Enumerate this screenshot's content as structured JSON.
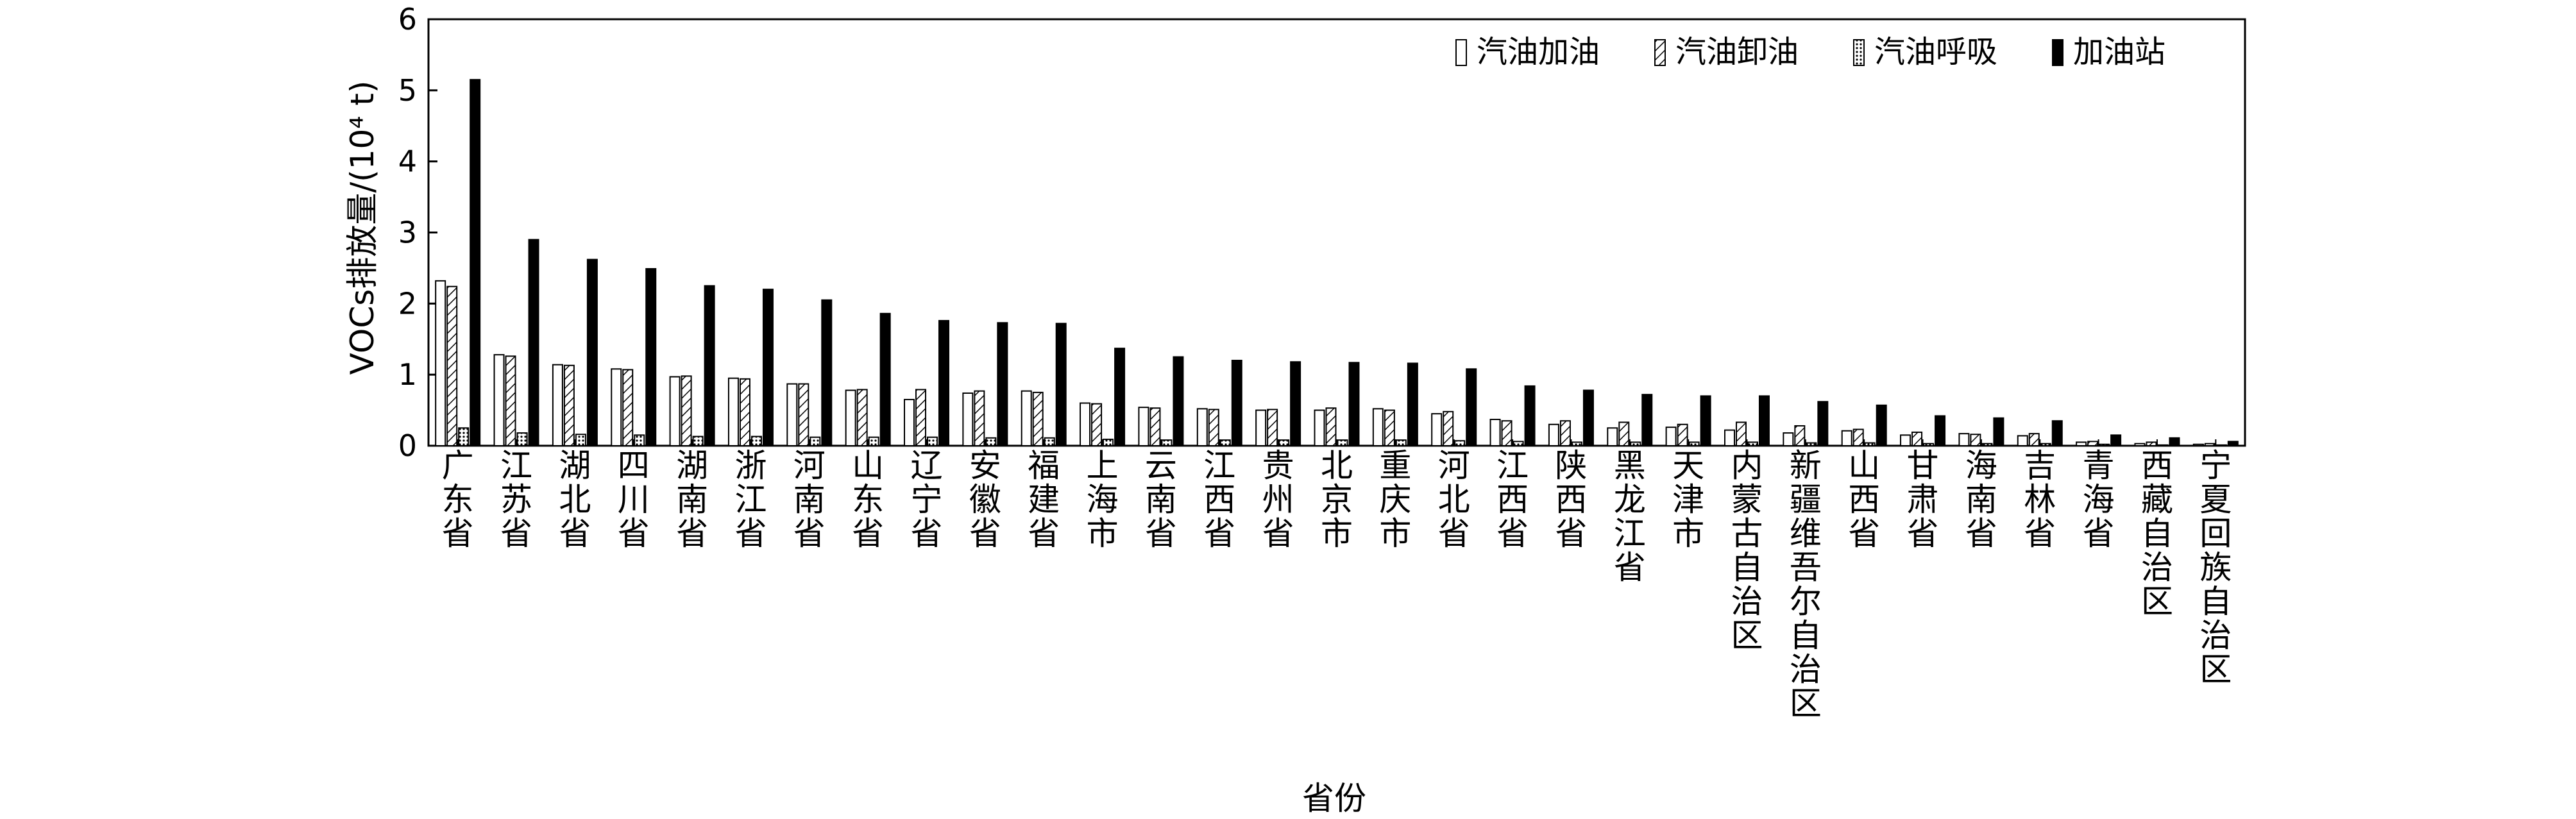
{
  "chart_data": {
    "type": "bar",
    "title": "",
    "xlabel": "省份",
    "ylabel": "VOCs排放量/(10⁴ t)",
    "ylim": [
      0,
      6
    ],
    "yticks": [
      "0",
      "1",
      "2",
      "3",
      "4",
      "5",
      "6"
    ],
    "grid": false,
    "legend_position": "top-right",
    "categories": [
      "广东省",
      "江苏省",
      "湖北省",
      "四川省",
      "湖南省",
      "浙江省",
      "河南省",
      "山东省",
      "辽宁省",
      "安徽省",
      "福建省",
      "上海市",
      "云南省",
      "江西省",
      "贵州省",
      "北京市",
      "重庆市",
      "河北省",
      "江西省",
      "陕西省",
      "黑龙江省",
      "天津市",
      "内蒙古自治区",
      "新疆维吾尔自治区",
      "山西省",
      "甘肃省",
      "海南省",
      "吉林省",
      "青海省",
      "西藏自治区",
      "宁夏回族自治区"
    ],
    "series": [
      {
        "name": "汽油加油",
        "pattern": "open",
        "values": [
          2.32,
          1.28,
          1.14,
          1.08,
          0.97,
          0.95,
          0.87,
          0.78,
          0.65,
          0.74,
          0.77,
          0.6,
          0.54,
          0.52,
          0.5,
          0.5,
          0.52,
          0.45,
          0.37,
          0.3,
          0.25,
          0.26,
          0.22,
          0.18,
          0.21,
          0.15,
          0.17,
          0.14,
          0.05,
          0.03,
          0.02
        ]
      },
      {
        "name": "汽油卸油",
        "pattern": "hatched",
        "values": [
          2.24,
          1.26,
          1.13,
          1.07,
          0.98,
          0.94,
          0.87,
          0.79,
          0.79,
          0.77,
          0.75,
          0.59,
          0.53,
          0.51,
          0.51,
          0.53,
          0.5,
          0.48,
          0.35,
          0.35,
          0.33,
          0.3,
          0.33,
          0.28,
          0.23,
          0.19,
          0.16,
          0.17,
          0.06,
          0.05,
          0.03
        ]
      },
      {
        "name": "汽油呼吸",
        "pattern": "dotted",
        "values": [
          0.25,
          0.18,
          0.16,
          0.15,
          0.13,
          0.13,
          0.12,
          0.12,
          0.12,
          0.11,
          0.11,
          0.09,
          0.08,
          0.08,
          0.08,
          0.08,
          0.08,
          0.07,
          0.06,
          0.05,
          0.05,
          0.05,
          0.05,
          0.04,
          0.04,
          0.03,
          0.03,
          0.03,
          0.02,
          0.01,
          0.01
        ]
      },
      {
        "name": "加油站",
        "pattern": "solid",
        "values": [
          5.15,
          2.9,
          2.62,
          2.49,
          2.25,
          2.2,
          2.05,
          1.86,
          1.76,
          1.73,
          1.72,
          1.37,
          1.25,
          1.2,
          1.18,
          1.17,
          1.16,
          1.08,
          0.84,
          0.78,
          0.72,
          0.7,
          0.7,
          0.62,
          0.57,
          0.42,
          0.39,
          0.35,
          0.15,
          0.11,
          0.06
        ]
      }
    ]
  }
}
